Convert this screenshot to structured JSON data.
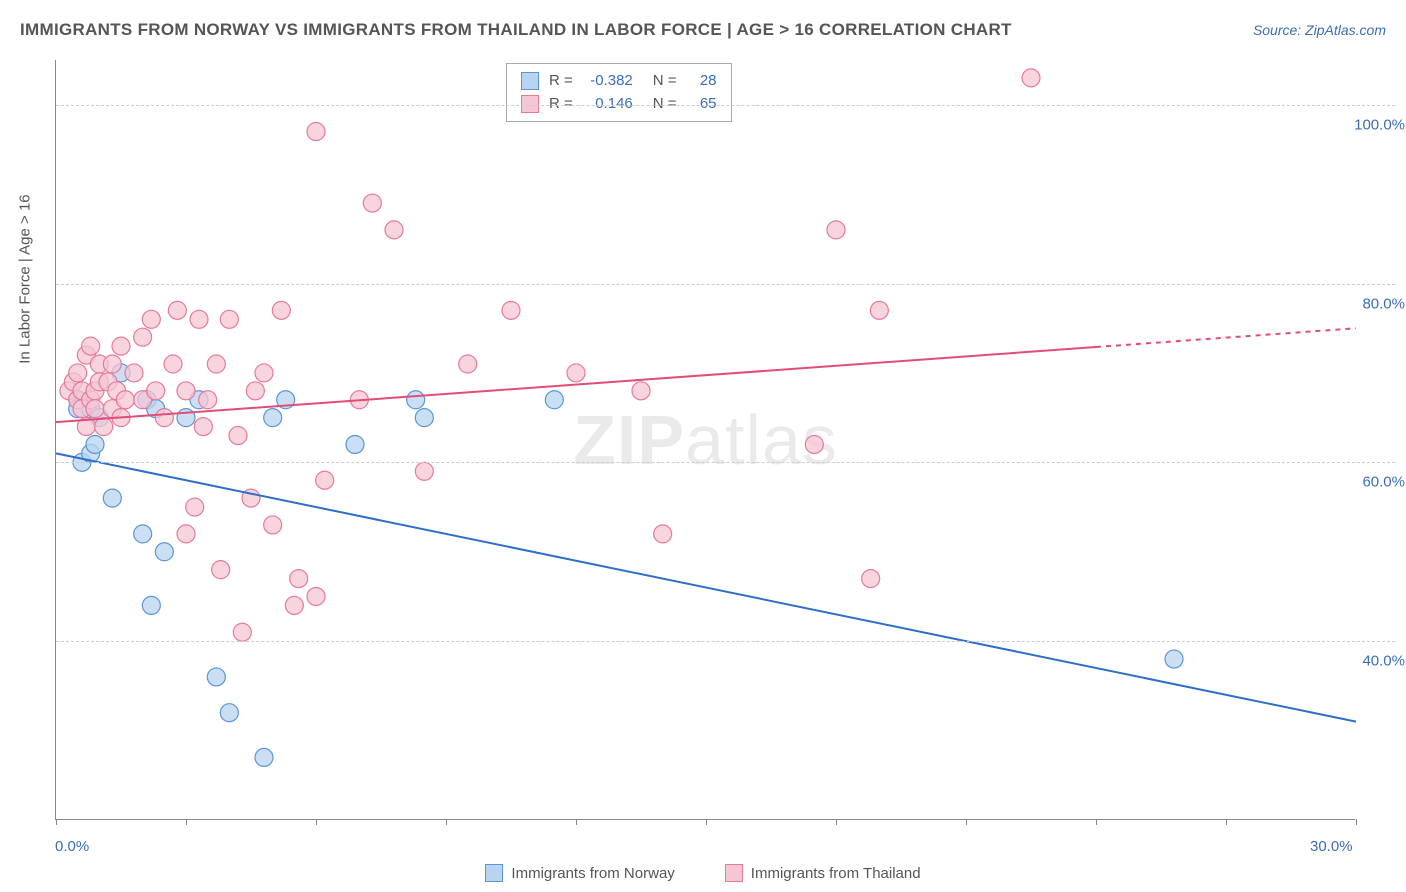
{
  "title": "IMMIGRANTS FROM NORWAY VS IMMIGRANTS FROM THAILAND IN LABOR FORCE | AGE > 16 CORRELATION CHART",
  "source": "Source: ZipAtlas.com",
  "y_axis_title": "In Labor Force | Age > 16",
  "watermark": {
    "bold": "ZIP",
    "light": "atlas"
  },
  "chart": {
    "type": "scatter",
    "xlim": [
      0,
      30
    ],
    "ylim": [
      20,
      105
    ],
    "x_ticks": [
      0,
      3,
      6,
      9,
      12,
      15,
      18,
      21,
      24,
      27,
      30
    ],
    "x_tick_labels": {
      "0": "0.0%",
      "30": "30.0%"
    },
    "y_gridlines": [
      40,
      60,
      80,
      100
    ],
    "y_tick_labels": [
      "40.0%",
      "60.0%",
      "80.0%",
      "100.0%"
    ],
    "background_color": "#ffffff",
    "grid_color": "#cccccc",
    "axis_color": "#888888",
    "marker_radius": 9,
    "marker_stroke_width": 1.2,
    "line_width": 2
  },
  "series": [
    {
      "name": "Immigrants from Norway",
      "fill": "#b9d4f0",
      "stroke": "#5a96d6",
      "line_color": "#2d6fc8",
      "R": "-0.382",
      "N": "28",
      "trend": {
        "x1": 0,
        "y1": 61,
        "x2": 30,
        "y2": 31,
        "solid_until_x": 30
      },
      "points": [
        [
          0.5,
          67
        ],
        [
          0.5,
          66
        ],
        [
          0.6,
          60
        ],
        [
          0.8,
          61
        ],
        [
          0.8,
          66
        ],
        [
          0.9,
          62
        ],
        [
          1.0,
          65
        ],
        [
          1.3,
          56
        ],
        [
          1.5,
          70
        ],
        [
          2.0,
          52
        ],
        [
          2.1,
          67
        ],
        [
          2.2,
          44
        ],
        [
          2.3,
          66
        ],
        [
          2.5,
          50
        ],
        [
          3.0,
          65
        ],
        [
          3.3,
          67
        ],
        [
          3.7,
          36
        ],
        [
          4.0,
          32
        ],
        [
          4.8,
          27
        ],
        [
          5.0,
          65
        ],
        [
          5.3,
          67
        ],
        [
          6.9,
          62
        ],
        [
          8.3,
          67
        ],
        [
          8.5,
          65
        ],
        [
          11.5,
          67
        ],
        [
          25.8,
          38
        ]
      ]
    },
    {
      "name": "Immigrants from Thailand",
      "fill": "#f6c6d4",
      "stroke": "#e67a9a",
      "line_color": "#e24d76",
      "R": "0.146",
      "N": "65",
      "trend": {
        "x1": 0,
        "y1": 64.5,
        "x2": 30,
        "y2": 75,
        "solid_until_x": 24
      },
      "points": [
        [
          0.3,
          68
        ],
        [
          0.4,
          69
        ],
        [
          0.5,
          67
        ],
        [
          0.5,
          70
        ],
        [
          0.6,
          66
        ],
        [
          0.6,
          68
        ],
        [
          0.7,
          64
        ],
        [
          0.7,
          72
        ],
        [
          0.8,
          67
        ],
        [
          0.8,
          73
        ],
        [
          0.9,
          68
        ],
        [
          0.9,
          66
        ],
        [
          1.0,
          71
        ],
        [
          1.0,
          69
        ],
        [
          1.1,
          64
        ],
        [
          1.2,
          69
        ],
        [
          1.3,
          66
        ],
        [
          1.3,
          71
        ],
        [
          1.4,
          68
        ],
        [
          1.5,
          73
        ],
        [
          1.5,
          65
        ],
        [
          1.6,
          67
        ],
        [
          1.8,
          70
        ],
        [
          2.0,
          67
        ],
        [
          2.0,
          74
        ],
        [
          2.2,
          76
        ],
        [
          2.3,
          68
        ],
        [
          2.5,
          65
        ],
        [
          2.7,
          71
        ],
        [
          2.8,
          77
        ],
        [
          3.0,
          68
        ],
        [
          3.0,
          52
        ],
        [
          3.2,
          55
        ],
        [
          3.3,
          76
        ],
        [
          3.4,
          64
        ],
        [
          3.5,
          67
        ],
        [
          3.7,
          71
        ],
        [
          3.8,
          48
        ],
        [
          4.0,
          76
        ],
        [
          4.2,
          63
        ],
        [
          4.3,
          41
        ],
        [
          4.5,
          56
        ],
        [
          4.6,
          68
        ],
        [
          4.8,
          70
        ],
        [
          5.0,
          53
        ],
        [
          5.2,
          77
        ],
        [
          5.5,
          44
        ],
        [
          5.6,
          47
        ],
        [
          6.0,
          45
        ],
        [
          6.0,
          97
        ],
        [
          6.2,
          58
        ],
        [
          7.0,
          67
        ],
        [
          7.3,
          89
        ],
        [
          7.8,
          86
        ],
        [
          8.5,
          59
        ],
        [
          9.5,
          71
        ],
        [
          10.5,
          77
        ],
        [
          12.0,
          70
        ],
        [
          13.5,
          68
        ],
        [
          14.0,
          52
        ],
        [
          17.5,
          62
        ],
        [
          18.0,
          86
        ],
        [
          19.0,
          77
        ],
        [
          18.8,
          47
        ],
        [
          22.5,
          103
        ]
      ]
    }
  ],
  "legend": {
    "items": [
      {
        "label": "Immigrants from Norway",
        "fill": "#b9d4f0",
        "stroke": "#5a96d6"
      },
      {
        "label": "Immigrants from Thailand",
        "fill": "#f6c6d4",
        "stroke": "#e67a9a"
      }
    ]
  }
}
